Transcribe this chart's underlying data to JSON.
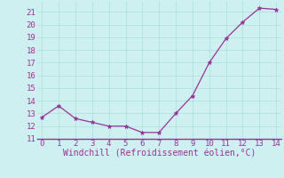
{
  "x": [
    0,
    1,
    2,
    3,
    4,
    5,
    6,
    7,
    8,
    9,
    10,
    11,
    12,
    13,
    14
  ],
  "y": [
    12.7,
    13.6,
    12.6,
    12.3,
    12.0,
    12.0,
    11.5,
    11.5,
    13.0,
    14.4,
    17.0,
    18.9,
    20.2,
    21.3,
    21.2
  ],
  "line_color": "#993399",
  "marker": "*",
  "marker_size": 3.5,
  "xlabel": "Windchill (Refroidissement éolien,°C)",
  "xlabel_color": "#993399",
  "xlabel_fontsize": 7,
  "yticks": [
    11,
    12,
    13,
    14,
    15,
    16,
    17,
    18,
    19,
    20,
    21
  ],
  "xticks": [
    0,
    1,
    2,
    3,
    4,
    5,
    6,
    7,
    8,
    9,
    10,
    11,
    12,
    13,
    14
  ],
  "xlim": [
    -0.3,
    14.3
  ],
  "ylim": [
    11,
    21.8
  ],
  "background_color": "#cff0f0",
  "grid_color": "#aadddd",
  "tick_color": "#993399",
  "tick_fontsize": 6.5,
  "axis_line_color": "#993399",
  "linewidth": 0.9
}
